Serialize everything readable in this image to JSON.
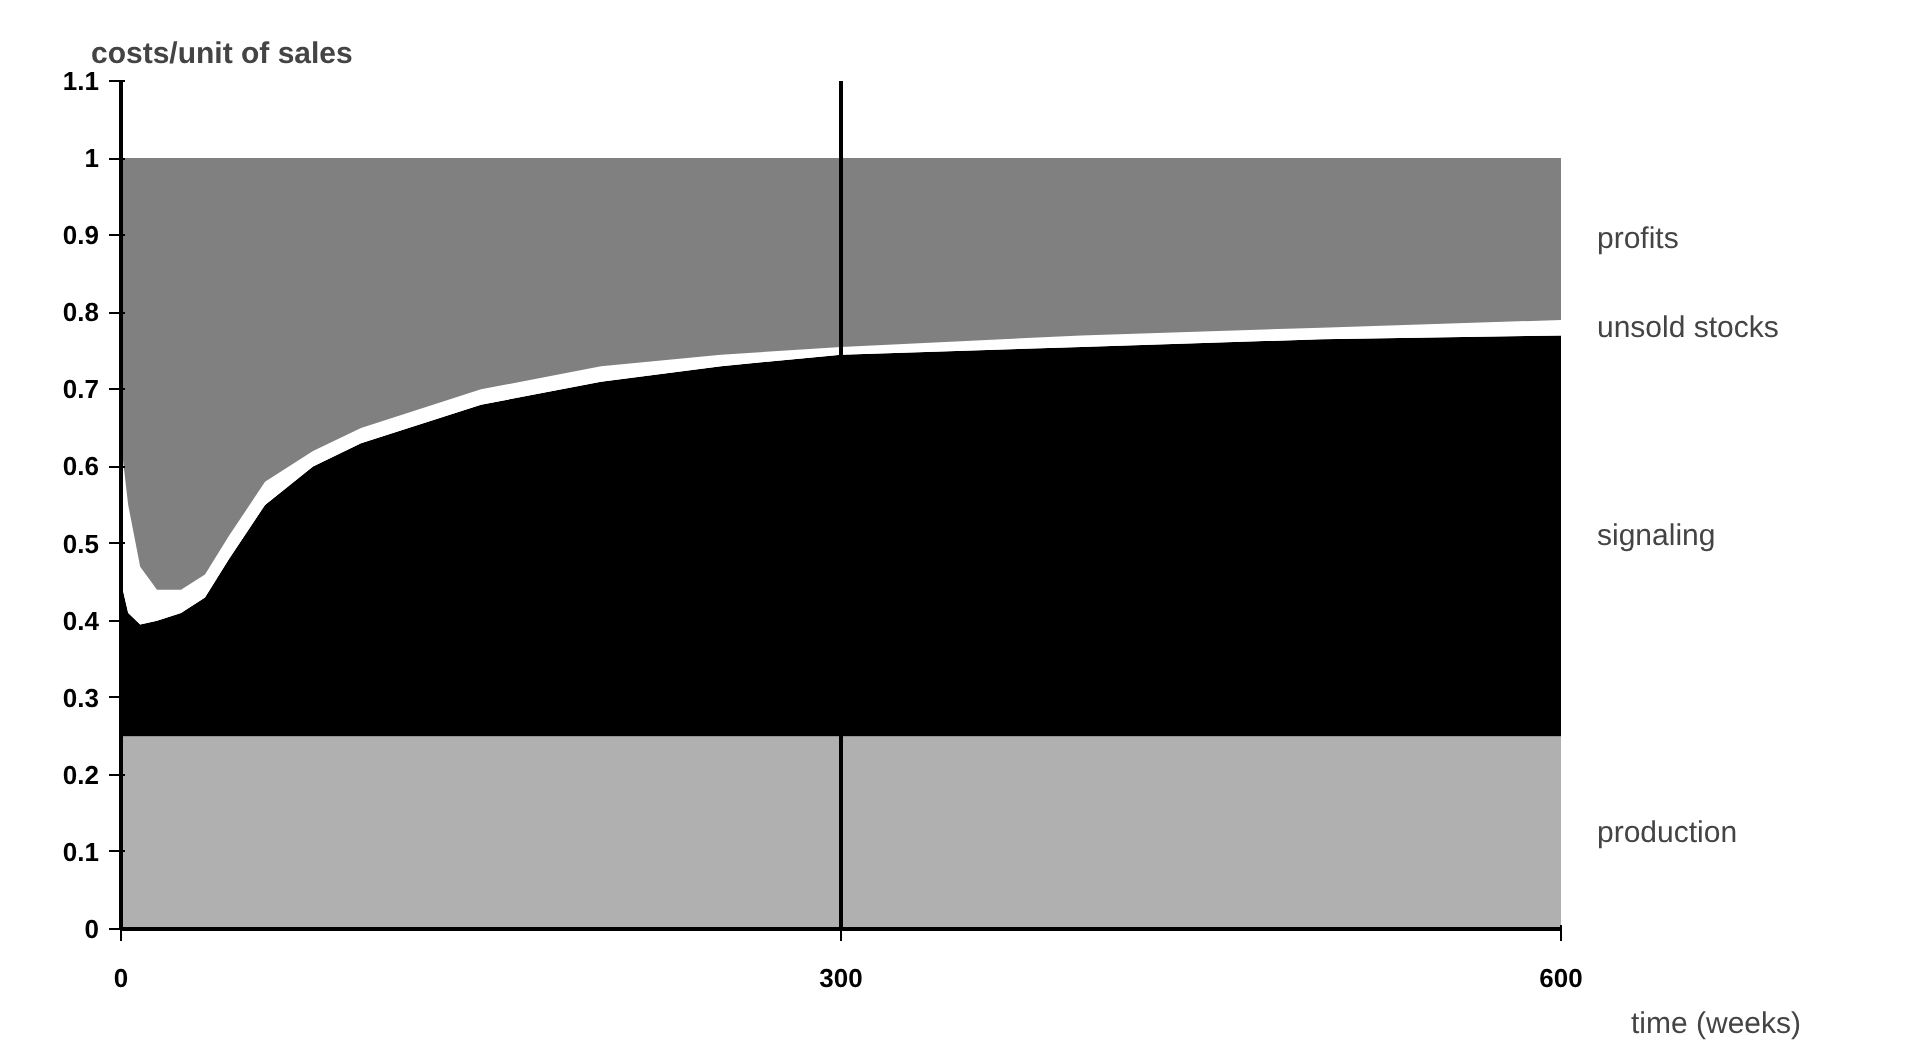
{
  "chart_data": {
    "type": "area",
    "stacked": true,
    "ylabel": "costs/unit of sales",
    "xlabel": "time (weeks)",
    "x": [
      0,
      3,
      8,
      15,
      25,
      35,
      45,
      60,
      80,
      100,
      150,
      200,
      250,
      300,
      400,
      500,
      600
    ],
    "series": [
      {
        "name": "production",
        "color": "#b0b0b0",
        "values": [
          0.25,
          0.25,
          0.25,
          0.25,
          0.25,
          0.25,
          0.25,
          0.25,
          0.25,
          0.25,
          0.25,
          0.25,
          0.25,
          0.25,
          0.25,
          0.25,
          0.25
        ]
      },
      {
        "name": "signaling",
        "color": "#000000",
        "values": [
          0.2,
          0.16,
          0.145,
          0.15,
          0.16,
          0.18,
          0.23,
          0.3,
          0.35,
          0.38,
          0.43,
          0.46,
          0.48,
          0.495,
          0.505,
          0.515,
          0.52
        ]
      },
      {
        "name": "unsold stocks",
        "color": "#ffffff",
        "values": [
          0.18,
          0.14,
          0.075,
          0.04,
          0.03,
          0.03,
          0.03,
          0.03,
          0.02,
          0.02,
          0.02,
          0.02,
          0.015,
          0.01,
          0.015,
          0.015,
          0.02
        ]
      },
      {
        "name": "profits",
        "color": "#808080",
        "values": [
          0.37,
          0.45,
          0.53,
          0.56,
          0.56,
          0.54,
          0.49,
          0.42,
          0.38,
          0.35,
          0.3,
          0.27,
          0.255,
          0.245,
          0.23,
          0.22,
          0.21
        ]
      }
    ],
    "xlim": [
      0,
      600
    ],
    "ylim": [
      0,
      1.1
    ],
    "xticks": [
      0,
      300,
      600
    ],
    "yticks": [
      0,
      0.1,
      0.2,
      0.3,
      0.4,
      0.5,
      0.6,
      0.7,
      0.8,
      0.9,
      1,
      1.1
    ],
    "ref_lines": [
      {
        "axis": "x",
        "value": 300,
        "color": "#000000"
      }
    ],
    "grid": false
  }
}
